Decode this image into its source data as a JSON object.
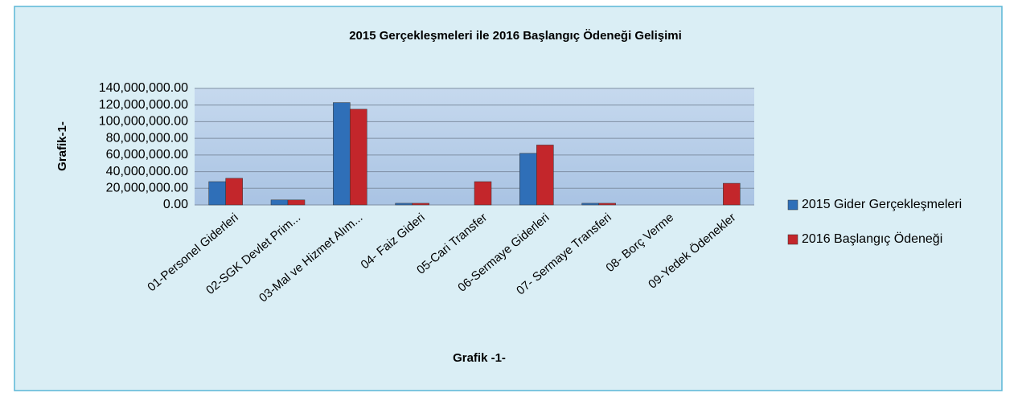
{
  "chart_data": {
    "type": "bar",
    "title": "2015 Gerçekleşmeleri ile 2016 Başlangıç Ödeneği Gelişimi",
    "y_label": "Grafik-1-",
    "x_label": "Grafik -1-",
    "categories": [
      "01-Personel Giderleri",
      "02-SGK Devlet Prim...",
      "03-Mal ve Hizmet Alım...",
      "04- Faiz Gideri",
      "05-Cari Transfer",
      "06-Sermaye Giderleri",
      "07- Sermaye Transferi",
      "08- Borç Verme",
      "09-Yedek Ödenekler"
    ],
    "series": [
      {
        "name": "2015 Gider Gerçekleşmeleri",
        "color": "#2f6fb8",
        "values": [
          28000000,
          6000000,
          123000000,
          2000000,
          0,
          62000000,
          2000000,
          0,
          0
        ]
      },
      {
        "name": "2016 Başlangıç Ödeneği",
        "color": "#c3262b",
        "values": [
          32000000,
          6000000,
          115000000,
          2000000,
          28000000,
          72000000,
          2000000,
          0,
          26000000
        ]
      }
    ],
    "ylim": [
      0,
      140000000
    ],
    "yticks": [
      {
        "value": 0,
        "label": "0.00"
      },
      {
        "value": 20000000,
        "label": "20,000,000.00"
      },
      {
        "value": 40000000,
        "label": "40,000,000.00"
      },
      {
        "value": 60000000,
        "label": "60,000,000.00"
      },
      {
        "value": 80000000,
        "label": "80,000,000.00"
      },
      {
        "value": 100000000,
        "label": "100,000,000.00"
      },
      {
        "value": 120000000,
        "label": "120,000,000.00"
      },
      {
        "value": 140000000,
        "label": "140,000,000.00"
      }
    ],
    "grid": true,
    "legend": "right"
  }
}
